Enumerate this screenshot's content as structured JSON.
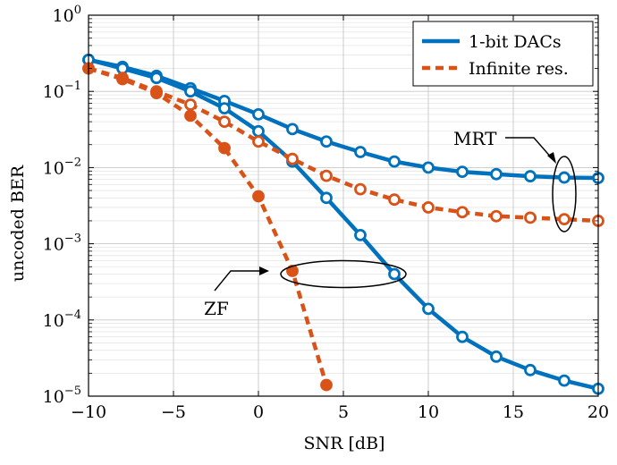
{
  "chart_data": {
    "type": "line",
    "title": "",
    "xlabel": "SNR [dB]",
    "ylabel": "uncoded BER",
    "xlim": [
      -10,
      20
    ],
    "ylim": [
      1e-05,
      1
    ],
    "yscale": "log",
    "grid": true,
    "legend_placement": "top-right",
    "x_ticks": [
      {
        "value": -10,
        "label": "−10"
      },
      {
        "value": -5,
        "label": "−5"
      },
      {
        "value": 0,
        "label": "0"
      },
      {
        "value": 5,
        "label": "5"
      },
      {
        "value": 10,
        "label": "10"
      },
      {
        "value": 15,
        "label": "15"
      },
      {
        "value": 20,
        "label": "20"
      }
    ],
    "y_ticks": [
      {
        "value": 1,
        "base": "10",
        "exp": "0"
      },
      {
        "value": 0.1,
        "base": "10",
        "exp": "−1"
      },
      {
        "value": 0.01,
        "base": "10",
        "exp": "−2"
      },
      {
        "value": 0.001,
        "base": "10",
        "exp": "−3"
      },
      {
        "value": 0.0001,
        "base": "10",
        "exp": "−4"
      },
      {
        "value": 1e-05,
        "base": "10",
        "exp": "−5"
      }
    ],
    "series": [
      {
        "name": "1-bit DACs",
        "key": "mrt-1bit",
        "color": "#0072bd",
        "dash": "solid",
        "marker_fill": "open",
        "points": [
          [
            -10,
            0.26
          ],
          [
            -8,
            0.21
          ],
          [
            -6,
            0.16
          ],
          [
            -4,
            0.11
          ],
          [
            -2,
            0.075
          ],
          [
            0,
            0.05
          ],
          [
            2,
            0.032
          ],
          [
            4,
            0.022
          ],
          [
            6,
            0.016
          ],
          [
            8,
            0.012
          ],
          [
            10,
            0.01
          ],
          [
            12,
            0.0088
          ],
          [
            14,
            0.0082
          ],
          [
            16,
            0.0077
          ],
          [
            18,
            0.0074
          ],
          [
            20,
            0.0073
          ]
        ]
      },
      {
        "name": "1-bit DACs",
        "key": "zf-1bit",
        "color": "#0072bd",
        "dash": "solid",
        "marker_fill": "open",
        "points": [
          [
            -10,
            0.26
          ],
          [
            -8,
            0.2
          ],
          [
            -6,
            0.15
          ],
          [
            -4,
            0.1
          ],
          [
            -2,
            0.06
          ],
          [
            0,
            0.03
          ],
          [
            2,
            0.012
          ],
          [
            4,
            0.004
          ],
          [
            6,
            0.0013
          ],
          [
            8,
            0.0004
          ],
          [
            10,
            0.00014
          ],
          [
            12,
            6e-05
          ],
          [
            14,
            3.3e-05
          ],
          [
            16,
            2.2e-05
          ],
          [
            18,
            1.6e-05
          ],
          [
            20,
            1.25e-05
          ]
        ]
      },
      {
        "name": "Infinite res.",
        "key": "mrt-inf",
        "color": "#d95319",
        "dash": "dashed",
        "marker_fill": "open",
        "points": [
          [
            -10,
            0.2
          ],
          [
            -8,
            0.15
          ],
          [
            -6,
            0.1
          ],
          [
            -4,
            0.067
          ],
          [
            -2,
            0.04
          ],
          [
            0,
            0.022
          ],
          [
            2,
            0.013
          ],
          [
            4,
            0.0078
          ],
          [
            6,
            0.0052
          ],
          [
            8,
            0.0038
          ],
          [
            10,
            0.003
          ],
          [
            12,
            0.0026
          ],
          [
            14,
            0.0023
          ],
          [
            16,
            0.0022
          ],
          [
            18,
            0.0021
          ],
          [
            20,
            0.002
          ]
        ]
      },
      {
        "name": "Infinite res.",
        "key": "zf-inf",
        "color": "#d95319",
        "dash": "dashed",
        "marker_fill": "solid",
        "points": [
          [
            -10,
            0.2
          ],
          [
            -8,
            0.145
          ],
          [
            -6,
            0.095
          ],
          [
            -4,
            0.048
          ],
          [
            -2,
            0.018
          ],
          [
            0,
            0.0042
          ],
          [
            2,
            0.00044
          ],
          [
            4,
            1.4e-05
          ]
        ]
      }
    ],
    "legend": [
      {
        "label": "1-bit DACs",
        "color": "#0072bd",
        "dash": "solid"
      },
      {
        "label": "Infinite res.",
        "color": "#d95319",
        "dash": "dashed"
      }
    ],
    "annotations": [
      {
        "text": "MRT",
        "points_to": "ellipse at SNR 18 dB spanning the MRT curves"
      },
      {
        "text": "ZF",
        "points_to": "ellipse at SNR 2–8 dB around BER 4e-4"
      }
    ]
  }
}
